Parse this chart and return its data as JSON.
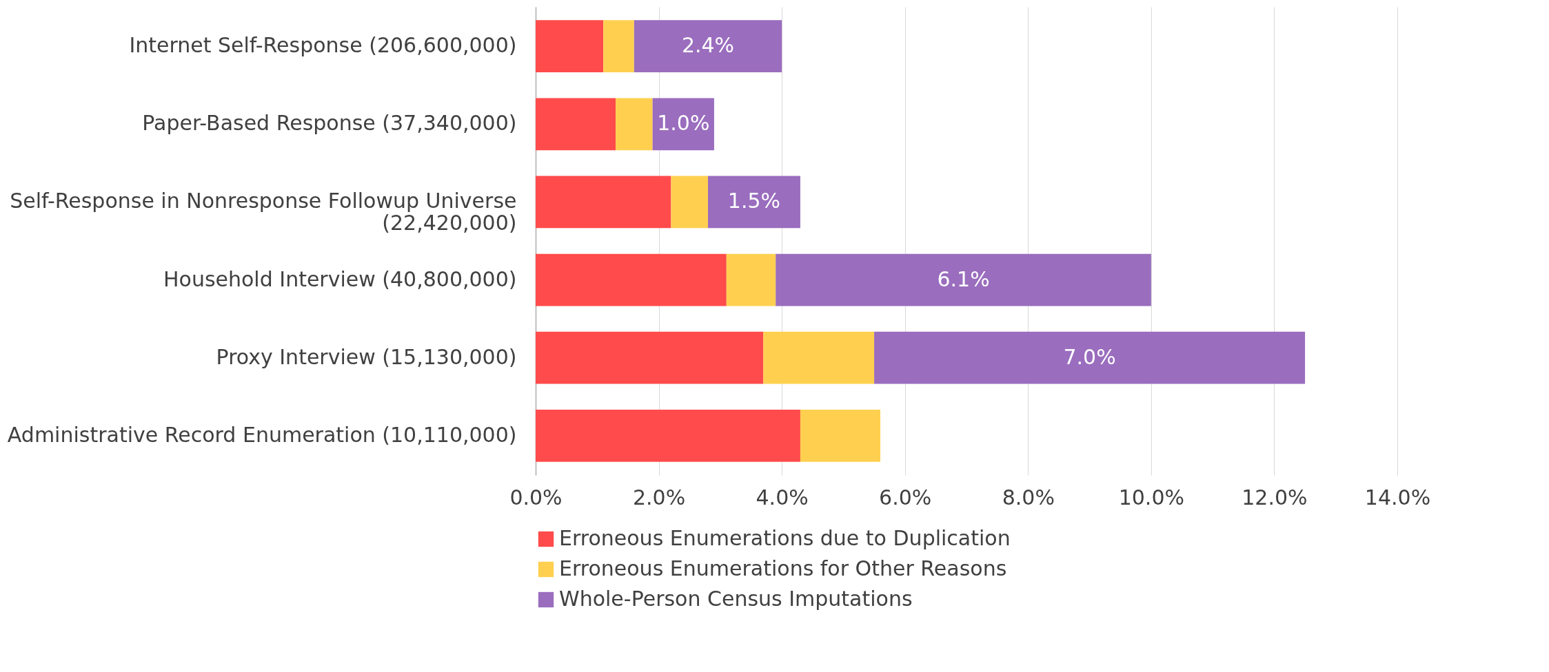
{
  "chart_data": {
    "type": "bar",
    "orientation": "horizontal",
    "stacked": true,
    "categories": [
      "Internet Self-Response (206,600,000)",
      "Paper-Based Response (37,340,000)",
      "Self-Response in Nonresponse Followup Universe (22,420,000)",
      "Household Interview (40,800,000)",
      "Proxy Interview (15,130,000)",
      "Administrative Record Enumeration (10,110,000)"
    ],
    "series": [
      {
        "name": "Erroneous Enumerations due to Duplication",
        "color": "#ff4b4b",
        "values": [
          1.1,
          1.3,
          2.2,
          3.1,
          3.7,
          4.3
        ]
      },
      {
        "name": "Erroneous Enumerations for Other Reasons",
        "color": "#ffd050",
        "values": [
          0.5,
          0.6,
          0.6,
          0.8,
          1.8,
          1.3
        ]
      },
      {
        "name": "Whole-Person Census Imputations",
        "color": "#9a6dbe",
        "values": [
          2.4,
          1.0,
          1.5,
          6.1,
          7.0,
          null
        ],
        "value_labels": [
          "2.4%",
          "1.0%",
          "1.5%",
          "6.1%",
          "7.0%",
          null
        ]
      }
    ],
    "xlim": [
      0,
      14
    ],
    "xticks": [
      {
        "value": 0,
        "label": "0.0%"
      },
      {
        "value": 2,
        "label": "2.0%"
      },
      {
        "value": 4,
        "label": "4.0%"
      },
      {
        "value": 6,
        "label": "6.0%"
      },
      {
        "value": 8,
        "label": "8.0%"
      },
      {
        "value": 10,
        "label": "10.0%"
      },
      {
        "value": 12,
        "label": "12.0%"
      },
      {
        "value": 14,
        "label": "14.0%"
      }
    ],
    "grid": "x",
    "legend": "bottom"
  }
}
